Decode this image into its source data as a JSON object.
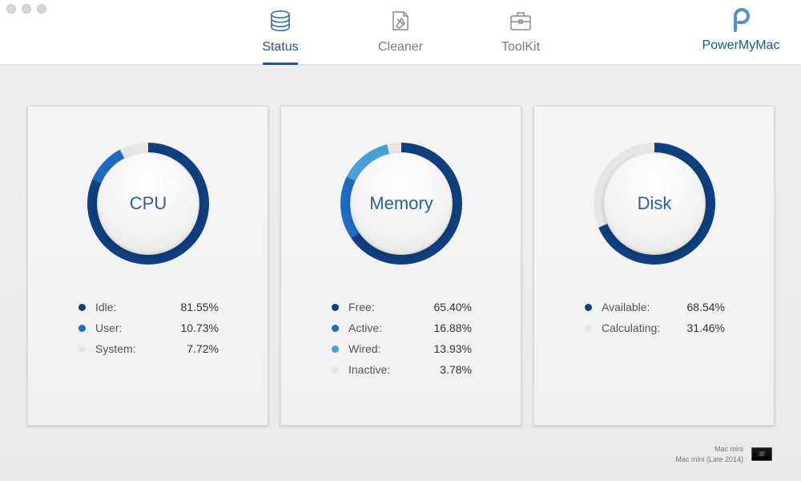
{
  "toolbar": {
    "tabs": [
      {
        "id": "status",
        "label": "Status",
        "icon": "database-icon",
        "active": true
      },
      {
        "id": "cleaner",
        "label": "Cleaner",
        "icon": "cleaner-broom-icon",
        "active": false
      },
      {
        "id": "toolkit",
        "label": "ToolKit",
        "icon": "briefcase-icon",
        "active": false
      }
    ],
    "brand": {
      "name": "PowerMyMac",
      "icon": "powermymac-logo-icon"
    }
  },
  "colors": {
    "accent": "#1e5594",
    "series_dark": "#0f3f7f",
    "series_mid": "#1c6cc4",
    "series_light": "#4a9fd6",
    "series_empty": "#e6e6e6"
  },
  "cards": {
    "cpu": {
      "title": "CPU",
      "items": [
        {
          "label": "Idle:",
          "value": "81.55%",
          "percent": 81.55,
          "color": "#0f3f7f"
        },
        {
          "label": "User:",
          "value": "10.73%",
          "percent": 10.73,
          "color": "#1c6cc4"
        },
        {
          "label": "System:",
          "value": "7.72%",
          "percent": 7.72,
          "color": "#e6e6e6"
        }
      ]
    },
    "memory": {
      "title": "Memory",
      "items": [
        {
          "label": "Free:",
          "value": "65.40%",
          "percent": 65.4,
          "color": "#0f3f7f"
        },
        {
          "label": "Active:",
          "value": "16.88%",
          "percent": 16.88,
          "color": "#1c6cc4"
        },
        {
          "label": "Wired:",
          "value": "13.93%",
          "percent": 13.93,
          "color": "#4a9fd6"
        },
        {
          "label": "Inactive:",
          "value": "3.78%",
          "percent": 3.78,
          "color": "#e6e6e6"
        }
      ]
    },
    "disk": {
      "title": "Disk",
      "items": [
        {
          "label": "Available:",
          "value": "68.54%",
          "percent": 68.54,
          "color": "#0f3f7f"
        },
        {
          "label": "Calculating:",
          "value": "31.46%",
          "percent": 31.46,
          "color": "#e6e6e6"
        }
      ]
    }
  },
  "footer": {
    "machine_name": "Mac mini",
    "machine_model": "Mac mini (Late 2014)",
    "icon": "mac-mini-icon"
  }
}
